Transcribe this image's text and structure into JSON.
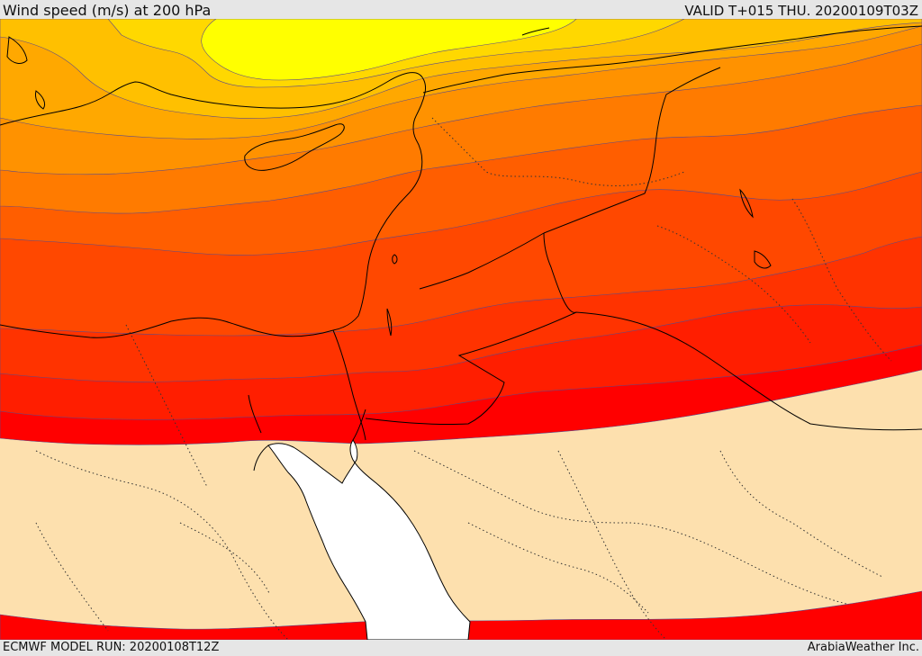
{
  "header": {
    "title": "Wind speed (m/s) at 200 hPa",
    "valid_time": "VALID T+015 THU. 20200109T03Z"
  },
  "footer": {
    "model_run": "ECMWF MODEL RUN: 20200108T12Z",
    "credit": "ArabiaWeather Inc."
  },
  "map": {
    "variable": "Wind speed (m/s)",
    "level": "200 hPa",
    "colors": {
      "calm": "#fde0ae",
      "band_1": "#ff0000",
      "band_2": "#ff1e00",
      "band_3": "#ff3300",
      "band_4": "#ff4800",
      "band_5": "#ff5e00",
      "band_6": "#ff7b00",
      "band_7": "#ff9200",
      "band_8": "#ffa800",
      "band_9": "#ffc000",
      "band_10": "#ffd800",
      "band_11": "#ffff00",
      "water_unshaded": "#ffffff",
      "contour": "#5a4a8a",
      "coastline": "#000000"
    }
  }
}
